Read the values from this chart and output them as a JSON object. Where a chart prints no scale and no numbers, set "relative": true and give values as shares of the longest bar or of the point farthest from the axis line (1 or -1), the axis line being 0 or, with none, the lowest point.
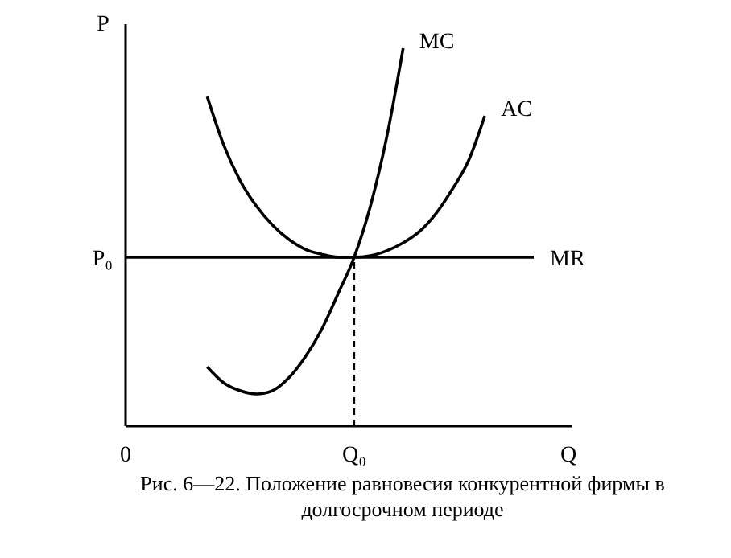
{
  "chart_data": {
    "type": "line",
    "relative": true,
    "title": "Рис. 6—22. Положение равновесия конкурентной фирмы в долгосрочном периоде",
    "xlabel": "Q",
    "ylabel": "P",
    "categories": [
      "0",
      null,
      null,
      null,
      null,
      null,
      null,
      null,
      null,
      null,
      null,
      null,
      null,
      null,
      "Q₀",
      null,
      null,
      null,
      null,
      null,
      null,
      null,
      null,
      null,
      null,
      null,
      null,
      null
    ],
    "series": [
      {
        "name": "MC",
        "color": "#000000",
        "values": [
          null,
          null,
          null,
          null,
          null,
          0.157,
          0.115,
          0.094,
          0.085,
          0.094,
          0.128,
          0.183,
          0.255,
          0.349,
          0.447,
          0.583,
          0.766,
          1.0,
          null,
          null,
          null,
          null,
          null,
          null,
          null,
          null,
          null,
          null
        ]
      },
      {
        "name": "AC",
        "color": "#000000",
        "values": [
          null,
          null,
          null,
          null,
          null,
          0.872,
          0.745,
          0.651,
          0.583,
          0.532,
          0.494,
          0.468,
          0.455,
          0.447,
          0.447,
          0.451,
          0.464,
          0.485,
          0.515,
          0.562,
          0.626,
          0.702,
          0.821,
          null,
          null,
          null,
          null,
          null
        ]
      },
      {
        "name": "MR",
        "color": "#000000",
        "values": [
          0.447,
          0.447,
          0.447,
          0.447,
          0.447,
          0.447,
          0.447,
          0.447,
          0.447,
          0.447,
          0.447,
          0.447,
          0.447,
          0.447,
          0.447,
          0.447,
          0.447,
          0.447,
          0.447,
          0.447,
          0.447,
          0.447,
          0.447,
          0.447,
          0.447,
          0.447,
          null,
          null
        ]
      }
    ],
    "ref_lines": [
      {
        "axis": "x",
        "value": "Q₀",
        "line_style": "dashed"
      }
    ],
    "annotations": [
      "P₀"
    ]
  }
}
